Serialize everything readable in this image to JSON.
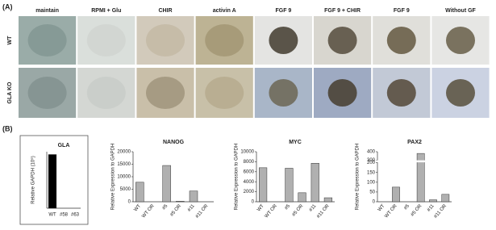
{
  "panel_a": {
    "label": "(A)",
    "columns": [
      "maintain",
      "RPMI + Glu",
      "CHIR",
      "activin A",
      "FGF 9",
      "FGF 9 + CHIR",
      "FGF 9",
      "Without GF"
    ],
    "rows": [
      "WT",
      "GLA KO"
    ]
  },
  "panel_b": {
    "label": "(B)"
  },
  "chart_data": [
    {
      "type": "bar",
      "title": "GLA",
      "ylabel": "Relative GAPDH (10⁶)",
      "categories": [
        "WT",
        "#58",
        "#63"
      ],
      "values": [
        95,
        0,
        0
      ],
      "color": "#000000",
      "ylim": [
        0,
        100
      ],
      "yticks": []
    },
    {
      "type": "bar",
      "title": "NANOG",
      "ylabel": "Relative Expression to GAPDH",
      "categories": [
        "WT",
        "WT OR",
        "#5",
        "#5 OR",
        "#11",
        "#11 OR"
      ],
      "values": [
        7800,
        0,
        14500,
        200,
        4300,
        0
      ],
      "color": "#b0b0b0",
      "ylim": [
        0,
        20000
      ],
      "yticks": [
        0,
        5000,
        10000,
        15000,
        20000
      ]
    },
    {
      "type": "bar",
      "title": "MYC",
      "ylabel": "Relative Expression to GAPDH",
      "categories": [
        "WT",
        "WT OR",
        "#5",
        "#5 OR",
        "#11",
        "#11 OR"
      ],
      "values": [
        6800,
        0,
        6700,
        1800,
        7700,
        800
      ],
      "color": "#b0b0b0",
      "ylim": [
        0,
        10000
      ],
      "yticks": [
        0,
        2000,
        4000,
        6000,
        8000,
        10000
      ]
    },
    {
      "type": "bar",
      "title": "PAX2",
      "ylabel": "Relative Expression to GAPDH",
      "categories": [
        "WT",
        "WT OR",
        "#5",
        "#5 OR",
        "#11",
        "#11 OR"
      ],
      "values": [
        0,
        75,
        0,
        380,
        10,
        38
      ],
      "color": "#b0b0b0",
      "ylim": [
        0,
        400
      ],
      "ybreak": [
        200,
        300
      ],
      "yticks": [
        0,
        50,
        100,
        150,
        200,
        300,
        400
      ]
    }
  ]
}
